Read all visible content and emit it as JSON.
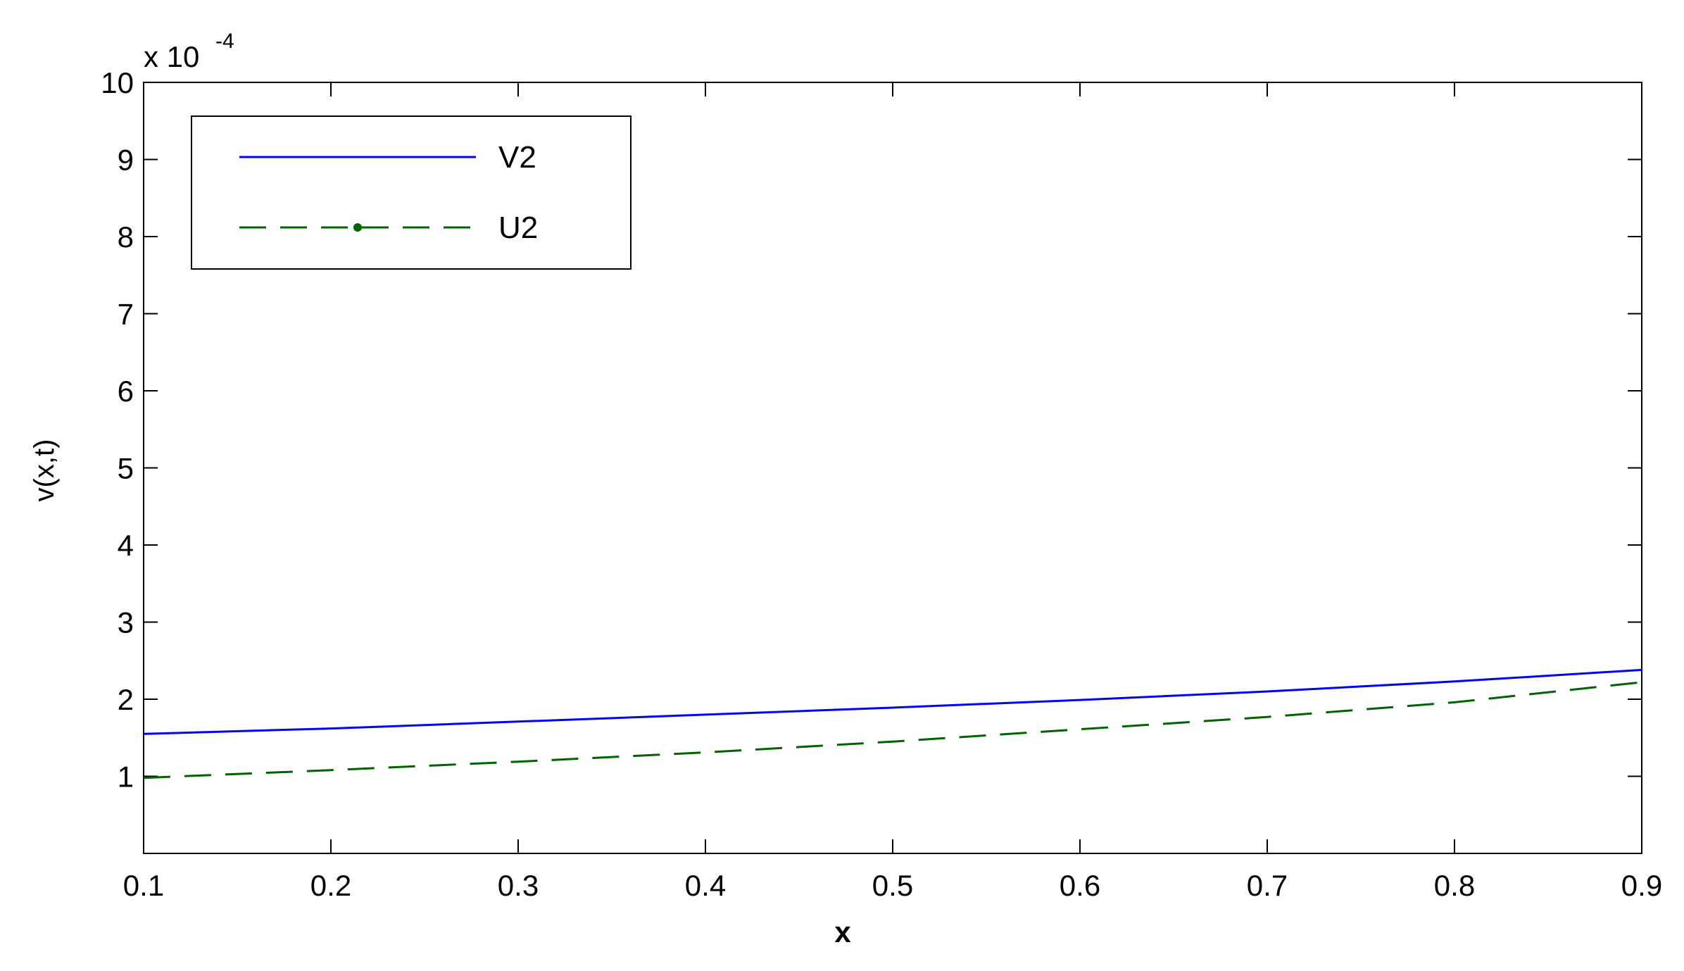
{
  "chart_data": {
    "type": "line",
    "xlabel": "x",
    "ylabel": "v(x,t)",
    "exponent_base": "x 10",
    "exponent_power": "-4",
    "xlim": [
      0.1,
      0.9
    ],
    "ylim": [
      0,
      10
    ],
    "x_ticks": [
      "0.1",
      "0.2",
      "0.3",
      "0.4",
      "0.5",
      "0.6",
      "0.7",
      "0.8",
      "0.9"
    ],
    "y_ticks": [
      "1",
      "2",
      "3",
      "4",
      "5",
      "6",
      "7",
      "8",
      "9",
      "10"
    ],
    "grid": false,
    "legend_position": "top-left",
    "series": [
      {
        "name": "V2",
        "color": "#0000ff",
        "style": "solid",
        "x": [
          0.1,
          0.2,
          0.3,
          0.4,
          0.5,
          0.6,
          0.7,
          0.8,
          0.9
        ],
        "y": [
          1.55,
          1.62,
          1.71,
          1.8,
          1.89,
          1.99,
          2.1,
          2.23,
          2.38
        ]
      },
      {
        "name": "U2",
        "color": "#006400",
        "style": "dashed",
        "x": [
          0.1,
          0.2,
          0.3,
          0.4,
          0.5,
          0.6,
          0.7,
          0.8,
          0.9
        ],
        "y": [
          0.98,
          1.08,
          1.19,
          1.31,
          1.45,
          1.61,
          1.77,
          1.96,
          2.22
        ]
      }
    ]
  }
}
